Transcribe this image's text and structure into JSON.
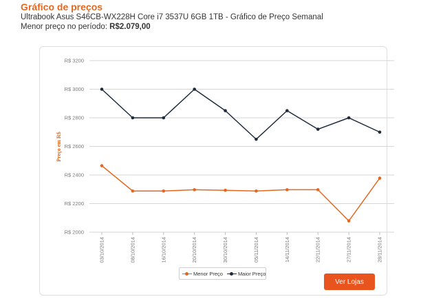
{
  "header": {
    "title": "Gráfico de preços",
    "subtitle": "Ultrabook Asus S46CB-WX228H Core i7 3537U 6GB 1TB - Gráfico de Preço Semanal",
    "lowest_label": "Menor preço no período:",
    "lowest_value": "R$2.079,00"
  },
  "chart_data": {
    "type": "line",
    "ylabel": "Preço em R$",
    "ylim": [
      2000,
      3200
    ],
    "yticks": [
      2000,
      2200,
      2400,
      2600,
      2800,
      3000,
      3200
    ],
    "ytick_labels": [
      "R$ 2000",
      "R$ 2200",
      "R$ 2400",
      "R$ 2600",
      "R$ 2800",
      "R$ 3000",
      "R$ 3200"
    ],
    "x": [
      "03/10/2014",
      "08/10/2014",
      "16/10/2014",
      "20/10/2014",
      "30/10/2014",
      "05/11/2014",
      "14/11/2014",
      "22/11/2014",
      "27/11/2014",
      "28/11/2014"
    ],
    "series": [
      {
        "name": "Menor Preço",
        "color": "#e4671f",
        "values": [
          2465,
          2288,
          2288,
          2297,
          2293,
          2288,
          2297,
          2297,
          2079,
          2378
        ]
      },
      {
        "name": "Maior Preço",
        "color": "#1d2b3a",
        "values": [
          3000,
          2800,
          2800,
          3000,
          2850,
          2650,
          2850,
          2720,
          2800,
          2700
        ]
      }
    ],
    "grid": true,
    "legend": "bottom-center"
  },
  "actions": {
    "stores_button": "Ver Lojas"
  }
}
